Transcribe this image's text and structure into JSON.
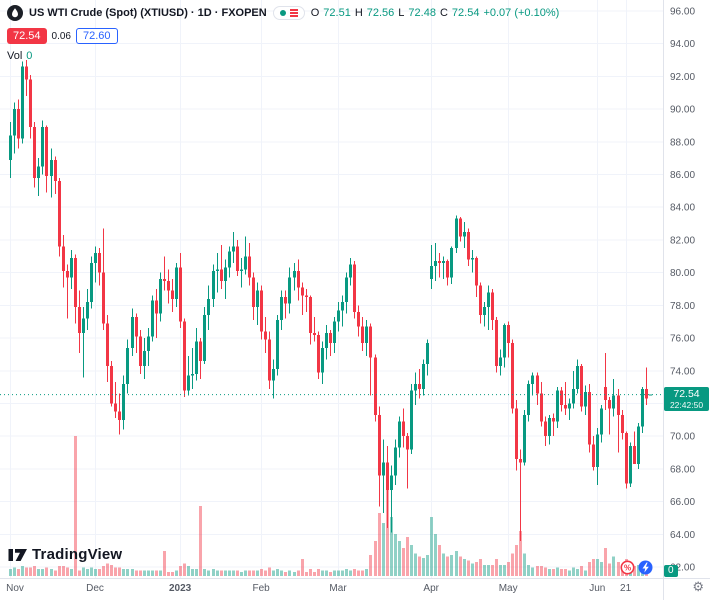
{
  "header": {
    "title": "US WTI Crude (Spot) (XTIUSD) · 1D · FXOPEN",
    "ohlc": {
      "open_label": "O",
      "open": "72.51",
      "high_label": "H",
      "high": "72.56",
      "low_label": "L",
      "low": "72.48",
      "close_label": "C",
      "close": "72.54",
      "change": "+0.07 (+0.10%)"
    },
    "bid": "72.54",
    "spread": "0.06",
    "ask": "72.60",
    "vol_label": "Vol",
    "vol_value": "0"
  },
  "watermark": {
    "brand": "TradingView"
  },
  "price_label": {
    "price": "72.54",
    "countdown": "22:42:50"
  },
  "vol_axis_label": "0",
  "icons": {
    "gear": "⚙"
  },
  "colors": {
    "up": "#089981",
    "down": "#f23645",
    "grid": "#f0f3fa",
    "axis_text": "#555a64",
    "border": "#e0e3eb",
    "bid_bg": "#f23645",
    "ask_blue": "#2962ff",
    "label_bg": "#089981"
  },
  "chart_data": {
    "type": "candlestick",
    "title": "US WTI Crude (Spot) (XTIUSD) · 1D · FXOPEN",
    "last_price": 72.54,
    "price_axis": {
      "min": 62,
      "max": 96,
      "step": 2,
      "labels": [
        "96.00",
        "94.00",
        "92.00",
        "90.00",
        "88.00",
        "86.00",
        "84.00",
        "82.00",
        "80.00",
        "78.00",
        "76.00",
        "74.00",
        "70.00",
        "68.00",
        "66.00",
        "64.00",
        "62.00"
      ]
    },
    "time_axis": [
      {
        "i": 0,
        "label": "Nov"
      },
      {
        "i": 21,
        "label": "Dec"
      },
      {
        "i": 42,
        "label": "2023",
        "bold": true
      },
      {
        "i": 62,
        "label": "Feb"
      },
      {
        "i": 81,
        "label": "Mar"
      },
      {
        "i": 104,
        "label": "Apr"
      },
      {
        "i": 123,
        "label": "May"
      },
      {
        "i": 145,
        "label": "Jun"
      },
      {
        "i": 152,
        "label": "21"
      }
    ],
    "candles_format": [
      "open",
      "high",
      "low",
      "close",
      "volume"
    ],
    "candles": [
      [
        86.9,
        89.2,
        85.8,
        88.4,
        5
      ],
      [
        88.4,
        90.4,
        87.3,
        90.0,
        6
      ],
      [
        90.0,
        90.6,
        87.6,
        88.2,
        5
      ],
      [
        88.2,
        92.9,
        87.9,
        92.6,
        7
      ],
      [
        92.6,
        93.0,
        90.8,
        91.8,
        6
      ],
      [
        91.8,
        92.1,
        88.2,
        88.9,
        6
      ],
      [
        88.9,
        89.2,
        85.2,
        85.8,
        7
      ],
      [
        85.8,
        87.0,
        84.7,
        86.5,
        5
      ],
      [
        86.5,
        89.3,
        86.0,
        88.9,
        5
      ],
      [
        88.9,
        89.0,
        84.9,
        85.9,
        6
      ],
      [
        85.9,
        87.6,
        84.6,
        86.9,
        5
      ],
      [
        86.9,
        87.1,
        84.8,
        85.6,
        4
      ],
      [
        85.6,
        85.8,
        81.0,
        81.6,
        7
      ],
      [
        81.6,
        82.3,
        79.1,
        80.1,
        7
      ],
      [
        80.1,
        80.5,
        77.2,
        79.7,
        6
      ],
      [
        79.7,
        81.4,
        79.0,
        80.9,
        5
      ],
      [
        80.9,
        81.1,
        76.9,
        77.9,
        100
      ],
      [
        77.9,
        78.9,
        75.1,
        76.3,
        4
      ],
      [
        76.3,
        77.9,
        73.6,
        77.2,
        6
      ],
      [
        77.2,
        79.0,
        76.5,
        78.2,
        5
      ],
      [
        78.2,
        81.0,
        77.8,
        80.6,
        6
      ],
      [
        80.6,
        81.6,
        79.4,
        81.2,
        5
      ],
      [
        81.2,
        81.5,
        79.2,
        80.0,
        5
      ],
      [
        80.0,
        82.7,
        76.5,
        76.9,
        7
      ],
      [
        76.9,
        77.4,
        73.3,
        74.3,
        9
      ],
      [
        74.3,
        74.6,
        71.8,
        72.0,
        8
      ],
      [
        72.0,
        73.3,
        71.1,
        71.5,
        6
      ],
      [
        71.5,
        72.6,
        70.1,
        71.0,
        6
      ],
      [
        71.0,
        73.7,
        70.4,
        73.2,
        5
      ],
      [
        73.2,
        75.9,
        72.6,
        75.4,
        5
      ],
      [
        75.4,
        77.8,
        74.9,
        77.3,
        5
      ],
      [
        77.3,
        77.5,
        75.1,
        76.1,
        4
      ],
      [
        76.1,
        76.5,
        73.8,
        74.3,
        4
      ],
      [
        74.3,
        76.0,
        73.5,
        75.2,
        4
      ],
      [
        75.2,
        76.6,
        74.3,
        76.1,
        4
      ],
      [
        76.1,
        78.6,
        75.8,
        78.3,
        4
      ],
      [
        78.3,
        79.0,
        76.0,
        77.5,
        4
      ],
      [
        77.5,
        80.0,
        77.0,
        79.6,
        4
      ],
      [
        79.6,
        81.0,
        78.9,
        79.5,
        18
      ],
      [
        79.5,
        80.2,
        78.1,
        78.9,
        3
      ],
      [
        78.9,
        79.6,
        77.6,
        78.4,
        3
      ],
      [
        78.4,
        80.6,
        77.9,
        80.3,
        4
      ],
      [
        80.3,
        81.2,
        76.6,
        77.0,
        7
      ],
      [
        77.0,
        77.2,
        72.4,
        72.8,
        9
      ],
      [
        72.8,
        74.9,
        72.5,
        73.7,
        7
      ],
      [
        73.7,
        75.4,
        72.9,
        73.8,
        5
      ],
      [
        73.8,
        76.6,
        73.4,
        75.8,
        5
      ],
      [
        75.8,
        76.0,
        73.5,
        74.6,
        50
      ],
      [
        74.6,
        77.9,
        74.4,
        77.4,
        5
      ],
      [
        77.4,
        79.2,
        76.5,
        78.4,
        4
      ],
      [
        78.4,
        80.5,
        77.9,
        80.1,
        5
      ],
      [
        80.1,
        81.2,
        78.8,
        80.2,
        4
      ],
      [
        80.2,
        81.7,
        79.0,
        79.5,
        4
      ],
      [
        79.5,
        80.8,
        78.4,
        80.3,
        4
      ],
      [
        80.3,
        81.6,
        79.7,
        81.3,
        4
      ],
      [
        81.3,
        82.5,
        80.6,
        81.6,
        4
      ],
      [
        81.6,
        82.0,
        79.8,
        80.1,
        4
      ],
      [
        80.1,
        80.9,
        79.1,
        80.2,
        3
      ],
      [
        80.2,
        82.2,
        79.9,
        81.0,
        4
      ],
      [
        81.0,
        81.8,
        79.2,
        79.7,
        4
      ],
      [
        79.7,
        80.0,
        77.1,
        77.9,
        4
      ],
      [
        77.9,
        79.4,
        76.8,
        78.9,
        4
      ],
      [
        78.9,
        79.2,
        75.9,
        76.4,
        5
      ],
      [
        76.4,
        77.3,
        75.1,
        75.9,
        4
      ],
      [
        75.9,
        76.4,
        72.9,
        73.4,
        6
      ],
      [
        73.4,
        74.7,
        72.3,
        74.1,
        4
      ],
      [
        74.1,
        77.4,
        73.7,
        77.1,
        5
      ],
      [
        77.1,
        78.9,
        76.5,
        78.5,
        4
      ],
      [
        78.5,
        78.9,
        77.2,
        78.1,
        3
      ],
      [
        78.1,
        80.3,
        77.5,
        79.7,
        4
      ],
      [
        79.7,
        80.6,
        78.9,
        80.1,
        3
      ],
      [
        80.1,
        80.8,
        78.3,
        79.1,
        4
      ],
      [
        79.1,
        79.4,
        77.4,
        78.6,
        12
      ],
      [
        78.6,
        79.0,
        77.6,
        78.5,
        3
      ],
      [
        78.5,
        78.6,
        75.6,
        76.3,
        5
      ],
      [
        76.3,
        77.3,
        75.8,
        76.2,
        3
      ],
      [
        76.2,
        76.4,
        73.5,
        73.9,
        5
      ],
      [
        73.9,
        75.8,
        73.2,
        75.4,
        4
      ],
      [
        75.4,
        76.8,
        74.7,
        76.3,
        4
      ],
      [
        76.3,
        76.5,
        74.9,
        75.7,
        3
      ],
      [
        75.7,
        77.3,
        75.1,
        77.0,
        4
      ],
      [
        77.0,
        78.2,
        76.4,
        77.7,
        4
      ],
      [
        77.7,
        78.6,
        76.7,
        78.2,
        4
      ],
      [
        78.2,
        80.0,
        77.5,
        79.7,
        5
      ],
      [
        79.7,
        80.9,
        79.2,
        80.5,
        4
      ],
      [
        80.5,
        80.7,
        77.2,
        77.6,
        5
      ],
      [
        77.6,
        78.0,
        76.1,
        76.7,
        4
      ],
      [
        76.7,
        77.3,
        75.2,
        75.7,
        4
      ],
      [
        75.7,
        77.1,
        74.9,
        76.7,
        5
      ],
      [
        76.7,
        76.9,
        72.5,
        74.8,
        15
      ],
      [
        74.8,
        75.0,
        70.9,
        71.3,
        25
      ],
      [
        71.3,
        71.8,
        65.7,
        67.6,
        45
      ],
      [
        67.6,
        69.8,
        65.3,
        68.4,
        38
      ],
      [
        68.4,
        69.4,
        64.4,
        66.7,
        65
      ],
      [
        66.7,
        68.2,
        64.1,
        67.6,
        42
      ],
      [
        67.6,
        69.8,
        67.0,
        69.3,
        30
      ],
      [
        69.3,
        71.2,
        68.7,
        70.9,
        25
      ],
      [
        70.9,
        71.7,
        69.3,
        70.0,
        20
      ],
      [
        70.0,
        70.2,
        66.8,
        69.2,
        28
      ],
      [
        69.2,
        73.2,
        68.9,
        72.8,
        22
      ],
      [
        72.8,
        73.9,
        71.9,
        73.2,
        16
      ],
      [
        73.2,
        74.1,
        72.3,
        72.9,
        14
      ],
      [
        72.9,
        74.7,
        72.5,
        74.4,
        13
      ],
      [
        74.4,
        75.9,
        73.7,
        75.7,
        15
      ],
      [
        79.6,
        81.7,
        79.0,
        80.4,
        42
      ],
      [
        80.4,
        81.8,
        79.5,
        80.7,
        30
      ],
      [
        80.7,
        81.2,
        79.7,
        80.6,
        22
      ],
      [
        80.6,
        81.0,
        79.6,
        80.7,
        16
      ],
      [
        80.7,
        80.8,
        79.2,
        79.7,
        14
      ],
      [
        79.7,
        81.6,
        79.3,
        81.5,
        15
      ],
      [
        81.5,
        83.5,
        81.2,
        83.3,
        18
      ],
      [
        83.3,
        83.4,
        81.9,
        82.2,
        14
      ],
      [
        82.2,
        83.1,
        81.5,
        82.5,
        12
      ],
      [
        82.5,
        82.7,
        80.4,
        80.8,
        11
      ],
      [
        80.8,
        81.4,
        80.0,
        80.9,
        9
      ],
      [
        80.9,
        81.0,
        78.5,
        79.2,
        10
      ],
      [
        79.2,
        79.4,
        76.9,
        77.4,
        12
      ],
      [
        77.4,
        78.2,
        76.7,
        77.9,
        8
      ],
      [
        77.9,
        79.2,
        76.5,
        78.8,
        8
      ],
      [
        78.8,
        79.0,
        76.5,
        77.1,
        8
      ],
      [
        77.1,
        77.3,
        73.9,
        74.3,
        12
      ],
      [
        74.3,
        75.3,
        73.7,
        74.8,
        8
      ],
      [
        74.8,
        76.9,
        74.2,
        76.8,
        8
      ],
      [
        76.8,
        77.0,
        74.8,
        75.7,
        10
      ],
      [
        75.7,
        75.9,
        71.4,
        71.7,
        16
      ],
      [
        71.7,
        72.2,
        67.9,
        68.6,
        22
      ],
      [
        68.6,
        69.2,
        63.6,
        68.4,
        32
      ],
      [
        68.4,
        71.6,
        68.2,
        71.3,
        16
      ],
      [
        71.3,
        73.4,
        70.9,
        73.2,
        8
      ],
      [
        73.2,
        73.9,
        72.5,
        73.7,
        6
      ],
      [
        73.7,
        73.9,
        71.9,
        72.6,
        7
      ],
      [
        72.6,
        73.3,
        70.6,
        70.9,
        7
      ],
      [
        70.9,
        71.2,
        69.4,
        70.0,
        6
      ],
      [
        70.0,
        71.3,
        69.5,
        71.1,
        5
      ],
      [
        71.1,
        71.4,
        70.0,
        70.9,
        5
      ],
      [
        70.9,
        73.0,
        70.5,
        72.8,
        6
      ],
      [
        72.8,
        73.0,
        71.5,
        71.9,
        5
      ],
      [
        71.9,
        73.3,
        71.3,
        71.7,
        5
      ],
      [
        71.7,
        72.3,
        71.0,
        72.0,
        4
      ],
      [
        72.0,
        74.0,
        71.7,
        72.9,
        6
      ],
      [
        72.9,
        74.7,
        72.6,
        74.3,
        5
      ],
      [
        74.3,
        74.4,
        71.5,
        71.8,
        7
      ],
      [
        71.8,
        73.1,
        71.3,
        72.7,
        4
      ],
      [
        72.7,
        73.2,
        69.0,
        69.5,
        10
      ],
      [
        69.5,
        70.0,
        67.9,
        68.1,
        12
      ],
      [
        68.1,
        70.5,
        67.0,
        70.1,
        12
      ],
      [
        70.1,
        71.9,
        69.6,
        71.7,
        10
      ],
      [
        73.0,
        75.1,
        71.6,
        72.2,
        20
      ],
      [
        72.2,
        72.4,
        70.1,
        71.7,
        9
      ],
      [
        71.7,
        73.5,
        71.2,
        72.5,
        14
      ],
      [
        72.5,
        72.9,
        69.0,
        71.3,
        10
      ],
      [
        71.3,
        71.6,
        69.8,
        70.2,
        7
      ],
      [
        70.2,
        70.3,
        66.8,
        67.1,
        12
      ],
      [
        67.1,
        69.6,
        66.9,
        69.4,
        9
      ],
      [
        69.4,
        70.3,
        68.3,
        68.3,
        7
      ],
      [
        68.3,
        70.8,
        68.0,
        70.6,
        8
      ],
      [
        70.6,
        73.0,
        70.2,
        72.9,
        7
      ],
      [
        72.9,
        74.2,
        71.9,
        72.3,
        6
      ],
      [
        72.51,
        72.56,
        72.48,
        72.54,
        0
      ]
    ]
  }
}
